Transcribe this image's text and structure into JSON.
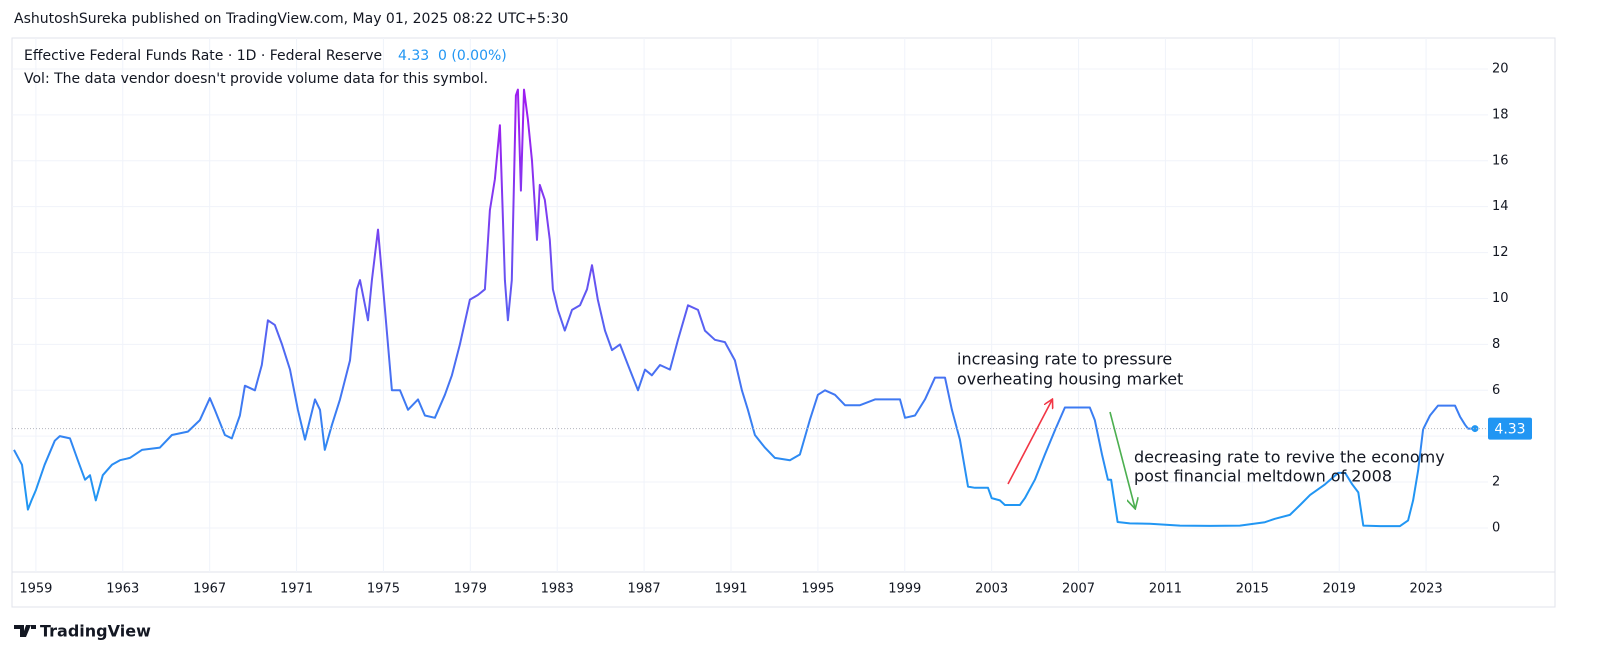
{
  "header": "AshutoshSureka published on TradingView.com, May 01, 2025 08:22 UTC+5:30",
  "footer": "TradingView",
  "chart_data": {
    "type": "line",
    "title": "Effective Federal Funds Rate · 1D · Federal Reserve",
    "last_value": 4.33,
    "change": "0 (0.00%)",
    "volume_note": "Vol: The data vendor doesn't provide volume data for this symbol.",
    "annotations": [
      {
        "lines": [
          "increasing rate to pressure",
          "overheating housing market"
        ]
      },
      {
        "lines": [
          "decreasing rate to revive the economy",
          "post financial meltdown of 2008"
        ]
      }
    ],
    "gradient_colors": [
      "#2196f3",
      "#9c1ff0"
    ],
    "value_label_color": "#2196f3",
    "grid": true,
    "xlim": [
      1957.9,
      2025.85
    ],
    "ylim": [
      -1.92,
      21.35
    ],
    "xticks": [
      1959,
      1963,
      1967,
      1971,
      1975,
      1979,
      1983,
      1987,
      1991,
      1995,
      1999,
      2003,
      2007,
      2011,
      2015,
      2019,
      2023
    ],
    "yticks": [
      0,
      2,
      4,
      6,
      8,
      10,
      12,
      14,
      16,
      18,
      20
    ],
    "x": [
      1957.99,
      1958.36,
      1958.63,
      1958.8,
      1959.0,
      1959.4,
      1959.87,
      1960.1,
      1960.57,
      1960.93,
      1961.26,
      1961.49,
      1961.76,
      1962.08,
      1962.5,
      1962.87,
      1963.33,
      1963.88,
      1964.71,
      1965.26,
      1966.0,
      1966.55,
      1967.01,
      1967.24,
      1967.7,
      1968.02,
      1968.39,
      1968.62,
      1969.08,
      1969.4,
      1969.68,
      1970.0,
      1970.33,
      1970.7,
      1971.06,
      1971.39,
      1971.85,
      1972.08,
      1972.3,
      1972.63,
      1973.0,
      1973.46,
      1973.78,
      1973.92,
      1974.29,
      1974.47,
      1974.75,
      1975.07,
      1975.39,
      1975.76,
      1976.13,
      1976.59,
      1976.91,
      1977.37,
      1977.83,
      1978.15,
      1978.52,
      1978.98,
      1979.35,
      1979.67,
      1979.9,
      1980.13,
      1980.36,
      1980.59,
      1980.73,
      1980.91,
      1981.1,
      1981.19,
      1981.33,
      1981.47,
      1981.65,
      1981.84,
      1982.07,
      1982.2,
      1982.43,
      1982.66,
      1982.8,
      1983.03,
      1983.35,
      1983.68,
      1984.05,
      1984.37,
      1984.6,
      1984.87,
      1985.2,
      1985.52,
      1985.89,
      1986.26,
      1986.72,
      1987.04,
      1987.36,
      1987.73,
      1988.19,
      1988.56,
      1989.02,
      1989.48,
      1989.8,
      1990.26,
      1990.72,
      1991.18,
      1991.5,
      1991.78,
      1992.1,
      1992.56,
      1993.02,
      1993.71,
      1994.17,
      1994.63,
      1995.0,
      1995.33,
      1995.79,
      1996.25,
      1996.94,
      1997.63,
      1998.32,
      1998.78,
      1999.01,
      1999.47,
      1999.93,
      2000.39,
      2000.85,
      2001.17,
      2001.54,
      2001.91,
      2002.23,
      2002.83,
      2003.0,
      2003.38,
      2003.61,
      2004.3,
      2004.53,
      2004.99,
      2005.45,
      2005.91,
      2006.37,
      2007.06,
      2007.52,
      2007.75,
      2008.08,
      2008.35,
      2008.5,
      2008.8,
      2009.36,
      2010.28,
      2011.67,
      2013.05,
      2014.43,
      2015.58,
      2016.04,
      2016.73,
      2017.2,
      2017.66,
      2018.35,
      2018.95,
      2019.27,
      2019.6,
      2019.88,
      2020.11,
      2020.89,
      2021.8,
      2022.17,
      2022.4,
      2022.63,
      2022.86,
      2023.18,
      2023.55,
      2024.33,
      2024.56,
      2024.79,
      2024.93,
      2025.25
    ],
    "values": [
      3.4,
      2.75,
      0.8,
      1.2,
      1.65,
      2.75,
      3.8,
      4.0,
      3.9,
      2.95,
      2.1,
      2.3,
      1.2,
      2.3,
      2.75,
      2.95,
      3.05,
      3.4,
      3.5,
      4.05,
      4.2,
      4.7,
      5.66,
      5.14,
      4.05,
      3.9,
      4.9,
      6.2,
      6.0,
      7.1,
      9.05,
      8.85,
      8.0,
      6.9,
      5.15,
      3.85,
      5.6,
      5.15,
      3.4,
      4.5,
      5.6,
      7.3,
      10.4,
      10.8,
      9.05,
      10.8,
      13.0,
      9.5,
      6.0,
      6.0,
      5.15,
      5.6,
      4.9,
      4.8,
      5.8,
      6.65,
      8.0,
      9.95,
      10.15,
      10.4,
      13.85,
      15.2,
      17.55,
      10.8,
      9.05,
      10.8,
      18.85,
      19.1,
      14.7,
      19.1,
      17.8,
      16.0,
      12.55,
      14.95,
      14.3,
      12.55,
      10.4,
      9.5,
      8.6,
      9.5,
      9.7,
      10.4,
      11.45,
      9.95,
      8.6,
      7.75,
      8.0,
      7.1,
      6.0,
      6.9,
      6.65,
      7.1,
      6.9,
      8.2,
      9.7,
      9.5,
      8.6,
      8.2,
      8.1,
      7.3,
      6.0,
      5.15,
      4.05,
      3.5,
      3.05,
      2.95,
      3.2,
      4.7,
      5.8,
      6.0,
      5.8,
      5.35,
      5.35,
      5.6,
      5.6,
      5.6,
      4.8,
      4.9,
      5.6,
      6.55,
      6.55,
      5.15,
      3.85,
      1.8,
      1.75,
      1.75,
      1.3,
      1.2,
      1.0,
      1.0,
      1.3,
      2.1,
      3.2,
      4.25,
      5.25,
      5.25,
      5.25,
      4.7,
      3.2,
      2.1,
      2.1,
      0.26,
      0.2,
      0.18,
      0.1,
      0.09,
      0.1,
      0.25,
      0.4,
      0.57,
      1.0,
      1.44,
      1.9,
      2.4,
      2.4,
      1.9,
      1.55,
      0.1,
      0.08,
      0.08,
      0.33,
      1.2,
      2.5,
      4.3,
      4.9,
      5.33,
      5.33,
      4.85,
      4.5,
      4.33,
      4.33
    ]
  }
}
